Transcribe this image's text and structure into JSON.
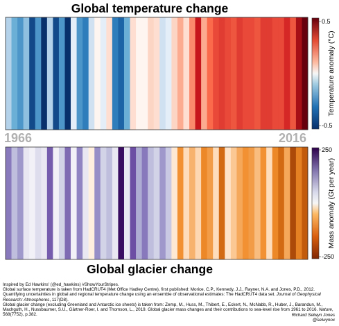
{
  "chart_data": [
    {
      "type": "heatmap",
      "title": "Global temperature change",
      "x": [
        1966,
        1967,
        1968,
        1969,
        1970,
        1971,
        1972,
        1973,
        1974,
        1975,
        1976,
        1977,
        1978,
        1979,
        1980,
        1981,
        1982,
        1983,
        1984,
        1985,
        1986,
        1987,
        1988,
        1989,
        1990,
        1991,
        1992,
        1993,
        1994,
        1995,
        1996,
        1997,
        1998,
        1999,
        2000,
        2001,
        2002,
        2003,
        2004,
        2005,
        2006,
        2007,
        2008,
        2009,
        2010,
        2011,
        2012,
        2013,
        2014,
        2015,
        2016
      ],
      "values": [
        -0.15,
        -0.25,
        -0.3,
        -0.2,
        -0.45,
        -0.3,
        -0.5,
        -0.15,
        -0.45,
        -0.3,
        -0.5,
        -0.05,
        -0.3,
        -0.35,
        -0.1,
        0.0,
        -0.05,
        0.05,
        -0.35,
        -0.4,
        -0.25,
        0.05,
        0.0,
        0.0,
        0.07,
        0.05,
        -0.1,
        -0.05,
        0.07,
        0.15,
        0.05,
        0.2,
        0.38,
        0.15,
        0.25,
        0.3,
        0.32,
        0.3,
        0.28,
        0.32,
        0.3,
        0.3,
        0.28,
        0.32,
        0.32,
        0.3,
        0.3,
        0.35,
        0.28,
        0.42,
        0.5
      ],
      "colorbar": {
        "label": "Temperature anomaly (°C)",
        "min_label": "-0.5",
        "max_label": "0.5",
        "range": [
          -0.5,
          0.5
        ]
      }
    },
    {
      "type": "heatmap",
      "title": "Global glacier change",
      "x": [
        1966,
        1967,
        1968,
        1969,
        1970,
        1971,
        1972,
        1973,
        1974,
        1975,
        1976,
        1977,
        1978,
        1979,
        1980,
        1981,
        1982,
        1983,
        1984,
        1985,
        1986,
        1987,
        1988,
        1989,
        1990,
        1991,
        1992,
        1993,
        1994,
        1995,
        1996,
        1997,
        1998,
        1999,
        2000,
        2001,
        2002,
        2003,
        2004,
        2005,
        2006,
        2007,
        2008,
        2009,
        2010,
        2011,
        2012,
        2013,
        2014,
        2015,
        2016
      ],
      "values": [
        130,
        60,
        100,
        20,
        10,
        30,
        20,
        150,
        10,
        40,
        140,
        10,
        120,
        20,
        -10,
        110,
        40,
        60,
        20,
        230,
        20,
        160,
        80,
        130,
        60,
        40,
        100,
        50,
        -20,
        -120,
        -40,
        -90,
        -50,
        -130,
        -110,
        -40,
        -170,
        -30,
        -70,
        -100,
        -120,
        -110,
        -80,
        -120,
        -40,
        -130,
        -170,
        -100,
        -210,
        -140,
        -190
      ],
      "colorbar": {
        "label": "Mass anomaly (Gt per year)",
        "min_label": "-250",
        "max_label": "250",
        "range": [
          -250,
          250
        ]
      }
    }
  ],
  "year_labels": {
    "start": "1966",
    "end": "2016"
  },
  "colors": {
    "warm_scale": [
      "#fff5f0",
      "#fcbba1",
      "#fb6a4a",
      "#cb181d",
      "#67000d"
    ],
    "cool_scale": [
      "#f7fbff",
      "#c6dbef",
      "#6baed6",
      "#2171b5",
      "#08306b"
    ],
    "purple_scale": [
      "#fcfbfd",
      "#bcbddc",
      "#8c7fc0",
      "#54278f",
      "#2d004b"
    ],
    "orange_scale": [
      "#fff5eb",
      "#fdd0a2",
      "#f08c2a",
      "#c65d0c",
      "#7f2704"
    ]
  },
  "footer": {
    "line1": "Inspired by Ed Hawkins' (@ed_hawkins) #ShowYourStripes.",
    "line2": "Global surface temperature is taken from HadCRUT4 (Met Office Hadley Centre), first published: Morice, C.P., Kennedy, J.J., Rayner, N.A. and Jones, P.D., 2012. Quantifying uncertainties in global and regional temperature change using an ensemble of observational estimates: The HadCRUT4 data set.",
    "line2_journal": "Journal of Geophysical Research: Atmospheres",
    "line2_end": ", 117(D8).",
    "line3": "Global glacier change (excluding Greenland and Antarctic ice sheets) is taken from: Zemp, M., Huss, M., Thibert, E., Eckert, N., McNabb, R., Huber, J., Barandun, M., Machguth, H., Nussbaumer, S.U., Gärtner-Roer, I. and Thomson, L., 2019. Global glacier mass changes and their contributions to sea-level rise from 1961 to 2016.",
    "line3_journal": "Nature",
    "line3_end": ", 568(7752), p.382."
  },
  "credit": {
    "name": "Richard Selwyn Jones",
    "handle": "@selwynox"
  }
}
